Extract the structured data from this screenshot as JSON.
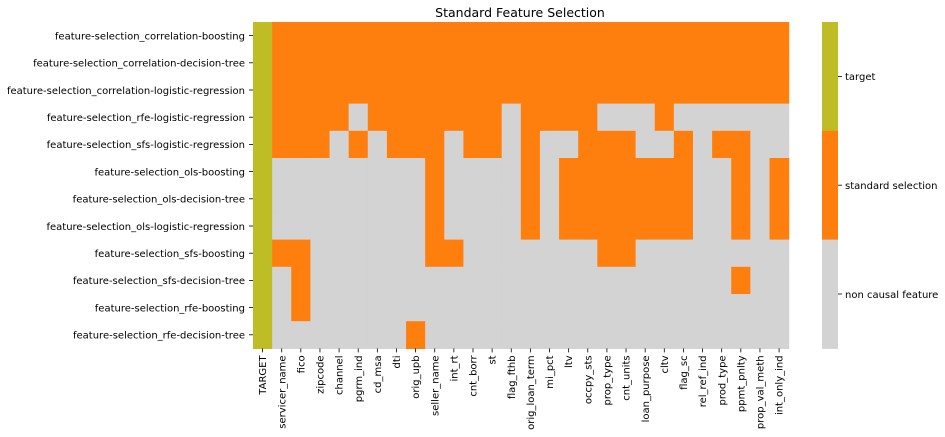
{
  "chart_data": {
    "type": "heatmap",
    "title": "Standard Feature Selection",
    "xlabel": "",
    "ylabel": "",
    "colors": {
      "target": "#bebd25",
      "standard selection": "#ff7f0e",
      "non causal feature": "#d3d3d3"
    },
    "legend": {
      "type": "colorbar",
      "position": "right",
      "labels": [
        "target",
        "standard selection",
        "non causal feature"
      ]
    },
    "columns": [
      "TARGET",
      "servicer_name",
      "fico",
      "zipcode",
      "channel",
      "pgrm_ind",
      "cd_msa",
      "dti",
      "orig_upb",
      "seller_name",
      "int_rt",
      "cnt_borr",
      "st",
      "flag_fthb",
      "orig_loan_term",
      "mi_pct",
      "ltv",
      "occpy_sts",
      "prop_type",
      "cnt_units",
      "loan_purpose",
      "cltv",
      "flag_sc",
      "rel_ref_ind",
      "prod_type",
      "ppmt_pnlty",
      "prop_val_meth",
      "int_only_ind"
    ],
    "rows": [
      "feature-selection_correlation-boosting",
      "feature-selection_correlation-decision-tree",
      "feature-selection_correlation-logistic-regression",
      "feature-selection_rfe-logistic-regression",
      "feature-selection_sfs-logistic-regression",
      "feature-selection_ols-boosting",
      "feature-selection_ols-decision-tree",
      "feature-selection_ols-logistic-regression",
      "feature-selection_sfs-boosting",
      "feature-selection_sfs-decision-tree",
      "feature-selection_rfe-boosting",
      "feature-selection_rfe-decision-tree"
    ],
    "category_codes": {
      "0": "non causal feature",
      "1": "standard selection",
      "2": "target"
    },
    "values": [
      [
        2,
        1,
        1,
        1,
        1,
        1,
        1,
        1,
        1,
        1,
        1,
        1,
        1,
        1,
        1,
        1,
        1,
        1,
        1,
        1,
        1,
        1,
        1,
        1,
        1,
        1,
        1,
        1
      ],
      [
        2,
        1,
        1,
        1,
        1,
        1,
        1,
        1,
        1,
        1,
        1,
        1,
        1,
        1,
        1,
        1,
        1,
        1,
        1,
        1,
        1,
        1,
        1,
        1,
        1,
        1,
        1,
        1
      ],
      [
        2,
        1,
        1,
        1,
        1,
        1,
        1,
        1,
        1,
        1,
        1,
        1,
        1,
        1,
        1,
        1,
        1,
        1,
        1,
        1,
        1,
        1,
        1,
        1,
        1,
        1,
        1,
        1
      ],
      [
        2,
        1,
        1,
        1,
        1,
        0,
        1,
        1,
        1,
        1,
        1,
        1,
        1,
        0,
        1,
        1,
        1,
        1,
        0,
        0,
        0,
        1,
        0,
        0,
        0,
        0,
        0,
        0
      ],
      [
        2,
        1,
        1,
        1,
        0,
        1,
        0,
        1,
        1,
        1,
        0,
        1,
        1,
        0,
        1,
        0,
        0,
        1,
        1,
        1,
        0,
        0,
        1,
        0,
        1,
        1,
        0,
        0
      ],
      [
        2,
        0,
        0,
        0,
        0,
        0,
        0,
        0,
        0,
        1,
        0,
        0,
        0,
        0,
        1,
        0,
        1,
        1,
        1,
        1,
        1,
        1,
        1,
        0,
        0,
        1,
        0,
        1
      ],
      [
        2,
        0,
        0,
        0,
        0,
        0,
        0,
        0,
        0,
        1,
        0,
        0,
        0,
        0,
        1,
        0,
        1,
        1,
        1,
        1,
        1,
        1,
        1,
        0,
        0,
        1,
        0,
        1
      ],
      [
        2,
        0,
        0,
        0,
        0,
        0,
        0,
        0,
        0,
        1,
        0,
        0,
        0,
        0,
        1,
        0,
        1,
        1,
        1,
        1,
        1,
        1,
        1,
        0,
        0,
        1,
        0,
        1
      ],
      [
        2,
        1,
        1,
        0,
        0,
        0,
        0,
        0,
        0,
        1,
        1,
        0,
        0,
        0,
        0,
        0,
        0,
        0,
        1,
        1,
        0,
        0,
        0,
        0,
        0,
        0,
        0,
        0
      ],
      [
        2,
        0,
        1,
        0,
        0,
        0,
        0,
        0,
        0,
        0,
        0,
        0,
        0,
        0,
        0,
        0,
        0,
        0,
        0,
        0,
        0,
        0,
        0,
        0,
        0,
        1,
        0,
        0
      ],
      [
        2,
        0,
        1,
        0,
        0,
        0,
        0,
        0,
        0,
        0,
        0,
        0,
        0,
        0,
        0,
        0,
        0,
        0,
        0,
        0,
        0,
        0,
        0,
        0,
        0,
        0,
        0,
        0
      ],
      [
        2,
        0,
        0,
        0,
        0,
        0,
        0,
        0,
        1,
        0,
        0,
        0,
        0,
        0,
        0,
        0,
        0,
        0,
        0,
        0,
        0,
        0,
        0,
        0,
        0,
        0,
        0,
        0
      ]
    ]
  }
}
